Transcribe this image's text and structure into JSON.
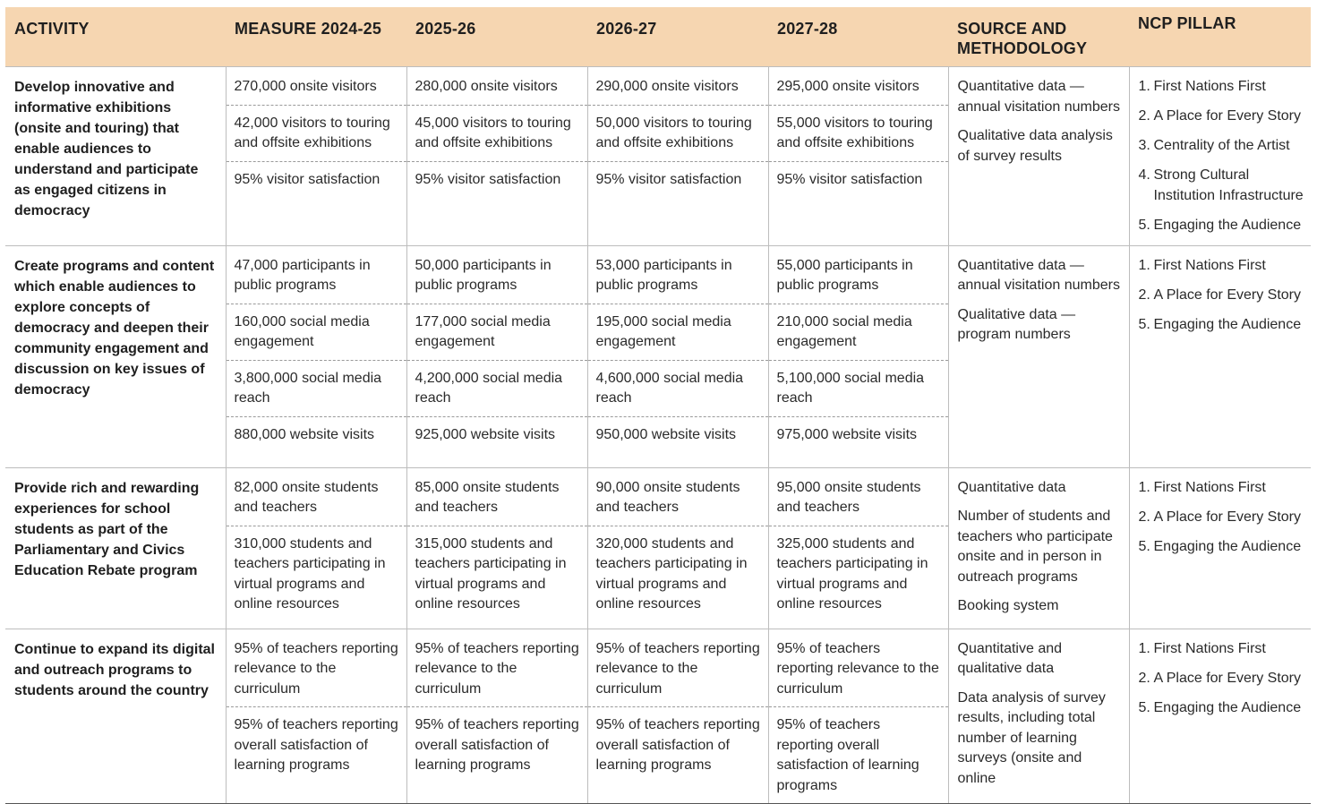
{
  "headers": {
    "activity": "ACTIVITY",
    "measure": "MEASURE 2024-25",
    "y2025": "2025-26",
    "y2026": "2026-27",
    "y2027": "2027-28",
    "source": "SOURCE AND METHODOLOGY",
    "pillar": "NCP PILLAR"
  },
  "rows": [
    {
      "activity": "Develop innovative and informative exhibitions (onsite and touring) that enable audiences to understand and participate as engaged citizens in democracy",
      "c0": [
        "270,000 onsite visitors",
        "42,000 visitors to touring and offsite exhibitions",
        "95% visitor satisfaction"
      ],
      "c1": [
        "280,000 onsite visitors",
        "45,000 visitors to touring and offsite exhibitions",
        "95% visitor satisfaction"
      ],
      "c2": [
        "290,000 onsite visitors",
        "50,000 visitors to touring and offsite exhibitions",
        "95% visitor satisfaction"
      ],
      "c3": [
        "295,000 onsite visitors",
        "55,000 visitors to touring and offsite exhibitions",
        "95% visitor satisfaction"
      ],
      "source": [
        "Quantitative data — annual visitation numbers",
        "Qualitative data analysis of survey results"
      ],
      "pillars": [
        {
          "num": "1.",
          "text": "First Nations First"
        },
        {
          "num": "2.",
          "text": "A Place for Every Story"
        },
        {
          "num": "3.",
          "text": "Centrality of the Artist"
        },
        {
          "num": "4.",
          "text": "Strong Cultural Institution Infrastructure"
        },
        {
          "num": "5.",
          "text": "Engaging the Audience"
        }
      ]
    },
    {
      "activity": "Create programs and content which enable audiences to explore concepts of democracy and deepen their community engagement and discussion on key issues of democracy",
      "c0": [
        "47,000 participants in public programs",
        "160,000 social media engagement",
        "3,800,000 social media reach",
        "880,000 website visits"
      ],
      "c1": [
        "50,000 participants in public programs",
        "177,000 social media engagement",
        "4,200,000 social media reach",
        "925,000 website visits"
      ],
      "c2": [
        "53,000 participants in public programs",
        "195,000 social media engagement",
        "4,600,000 social media reach",
        "950,000 website visits"
      ],
      "c3": [
        "55,000 participants in public programs",
        "210,000 social media engagement",
        "5,100,000 social media reach",
        "975,000 website visits"
      ],
      "source": [
        "Quantitative data — annual visitation numbers",
        "Qualitative data — program numbers"
      ],
      "pillars": [
        {
          "num": "1.",
          "text": "First Nations First"
        },
        {
          "num": "2.",
          "text": "A Place for Every Story"
        },
        {
          "num": "5.",
          "text": "Engaging the Audience"
        }
      ]
    },
    {
      "activity": "Provide rich and rewarding experiences for school students as part of the Parliamentary and Civics Education Rebate program",
      "c0": [
        "82,000 onsite students and teachers",
        "310,000 students and teachers participating in virtual programs and online resources"
      ],
      "c1": [
        "85,000 onsite students and teachers",
        "315,000 students and teachers participating in virtual programs and online resources"
      ],
      "c2": [
        "90,000 onsite students and teachers",
        "320,000 students and teachers participating in virtual programs and online resources"
      ],
      "c3": [
        "95,000 onsite students and teachers",
        "325,000 students and teachers participating in virtual programs and online resources"
      ],
      "source": [
        "Quantitative data",
        "Number of students and teachers who participate onsite and in person in outreach programs",
        "Booking system"
      ],
      "pillars": [
        {
          "num": "1.",
          "text": "First Nations First"
        },
        {
          "num": "2.",
          "text": "A Place for Every Story"
        },
        {
          "num": "5.",
          "text": "Engaging the Audience"
        }
      ]
    },
    {
      "activity": "Continue to expand its digital and outreach programs to students around the country",
      "c0": [
        "95% of teachers reporting relevance to the curriculum",
        "95% of teachers reporting overall satisfaction of learning programs"
      ],
      "c1": [
        "95% of teachers reporting relevance to the curriculum",
        "95% of teachers reporting overall satisfaction of learning programs"
      ],
      "c2": [
        "95% of teachers reporting relevance to the curriculum",
        "95% of teachers reporting overall satisfaction of learning programs"
      ],
      "c3": [
        "95% of teachers reporting relevance to the curriculum",
        "95% of teachers reporting overall satisfaction of learning programs"
      ],
      "source": [
        "Quantitative and qualitative data",
        "Data analysis of survey results, including total number of learning surveys (onsite and online"
      ],
      "pillars": [
        {
          "num": "1.",
          "text": "First Nations First"
        },
        {
          "num": "2.",
          "text": "A Place for Every Story"
        },
        {
          "num": "5.",
          "text": "Engaging the Audience"
        }
      ]
    }
  ]
}
